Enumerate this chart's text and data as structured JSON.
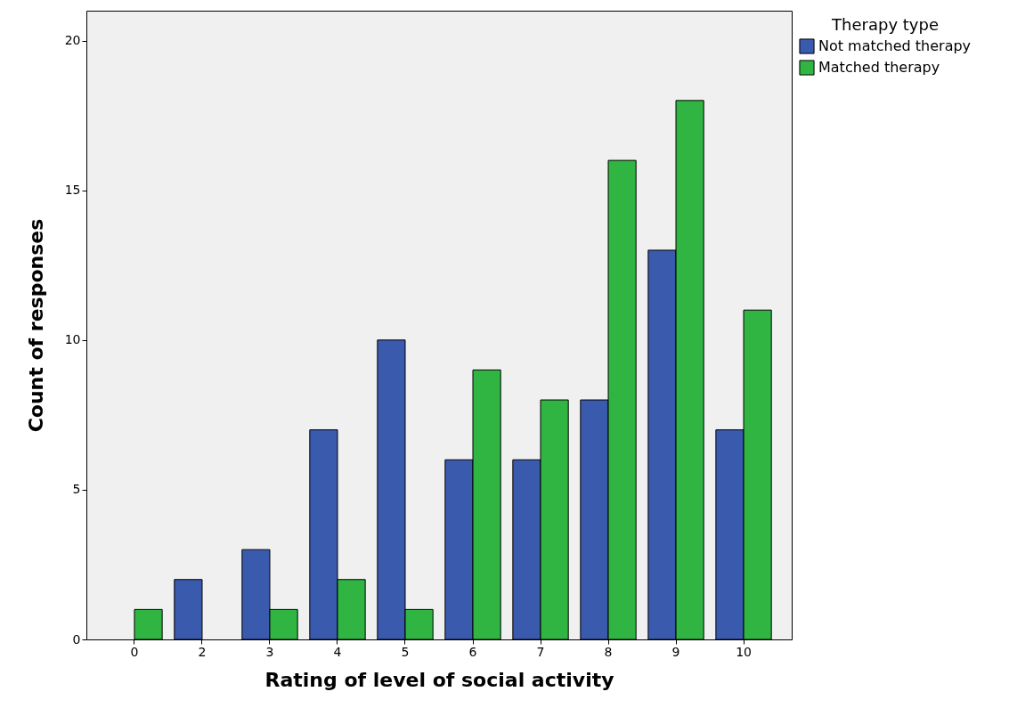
{
  "chart_data": {
    "type": "bar",
    "xlabel": "Rating of level of social activity",
    "ylabel": "Count of responses",
    "legend_title": "Therapy type",
    "categories": [
      "0",
      "2",
      "3",
      "4",
      "5",
      "6",
      "7",
      "8",
      "9",
      "10"
    ],
    "series": [
      {
        "name": "Not matched therapy",
        "color": "#3a5aae",
        "values": [
          null,
          2,
          3,
          7,
          10,
          6,
          6,
          8,
          13,
          7
        ]
      },
      {
        "name": "Matched therapy",
        "color": "#30b543",
        "values": [
          1,
          null,
          1,
          2,
          1,
          9,
          8,
          16,
          18,
          11
        ]
      }
    ],
    "ylim": [
      0,
      21
    ],
    "yticks": [
      0,
      5,
      10,
      15,
      20
    ],
    "grid": false,
    "legend": "top right"
  }
}
